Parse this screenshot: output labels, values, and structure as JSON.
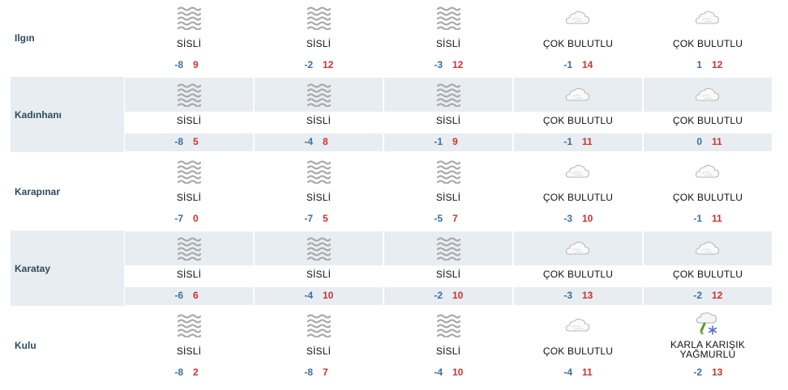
{
  "colors": {
    "alt_row_bg": "#e8edf1",
    "city_text": "#2f4a5e",
    "min_temp": "#3a6ea5",
    "max_temp": "#d0312d"
  },
  "rows": [
    {
      "city": "Ilgın",
      "days": [
        {
          "icon": "fog-icon",
          "condition": "SİSLİ",
          "min": "-8",
          "max": "9"
        },
        {
          "icon": "fog-icon",
          "condition": "SİSLİ",
          "min": "-2",
          "max": "12"
        },
        {
          "icon": "fog-icon",
          "condition": "SİSLİ",
          "min": "-3",
          "max": "12"
        },
        {
          "icon": "cloud-icon",
          "condition": "ÇOK BULUTLU",
          "min": "-1",
          "max": "14"
        },
        {
          "icon": "cloud-icon",
          "condition": "ÇOK BULUTLU",
          "min": "1",
          "max": "12"
        }
      ]
    },
    {
      "city": "Kadınhanı",
      "days": [
        {
          "icon": "fog-icon",
          "condition": "SİSLİ",
          "min": "-8",
          "max": "5"
        },
        {
          "icon": "fog-icon",
          "condition": "SİSLİ",
          "min": "-4",
          "max": "8"
        },
        {
          "icon": "fog-icon",
          "condition": "SİSLİ",
          "min": "-1",
          "max": "9"
        },
        {
          "icon": "cloud-icon",
          "condition": "ÇOK BULUTLU",
          "min": "-1",
          "max": "11"
        },
        {
          "icon": "cloud-icon",
          "condition": "ÇOK BULUTLU",
          "min": "0",
          "max": "11"
        }
      ]
    },
    {
      "city": "Karapınar",
      "days": [
        {
          "icon": "fog-icon",
          "condition": "SİSLİ",
          "min": "-7",
          "max": "0"
        },
        {
          "icon": "fog-icon",
          "condition": "SİSLİ",
          "min": "-7",
          "max": "5"
        },
        {
          "icon": "fog-icon",
          "condition": "SİSLİ",
          "min": "-5",
          "max": "7"
        },
        {
          "icon": "cloud-icon",
          "condition": "ÇOK BULUTLU",
          "min": "-3",
          "max": "10"
        },
        {
          "icon": "cloud-icon",
          "condition": "ÇOK BULUTLU",
          "min": "-1",
          "max": "11"
        }
      ]
    },
    {
      "city": "Karatay",
      "days": [
        {
          "icon": "fog-icon",
          "condition": "SİSLİ",
          "min": "-6",
          "max": "6"
        },
        {
          "icon": "fog-icon",
          "condition": "SİSLİ",
          "min": "-4",
          "max": "10"
        },
        {
          "icon": "fog-icon",
          "condition": "SİSLİ",
          "min": "-2",
          "max": "10"
        },
        {
          "icon": "cloud-icon",
          "condition": "ÇOK BULUTLU",
          "min": "-3",
          "max": "13"
        },
        {
          "icon": "cloud-icon",
          "condition": "ÇOK BULUTLU",
          "min": "-2",
          "max": "12"
        }
      ]
    },
    {
      "city": "Kulu",
      "days": [
        {
          "icon": "fog-icon",
          "condition": "SİSLİ",
          "min": "-8",
          "max": "2"
        },
        {
          "icon": "fog-icon",
          "condition": "SİSLİ",
          "min": "-8",
          "max": "7"
        },
        {
          "icon": "fog-icon",
          "condition": "SİSLİ",
          "min": "-4",
          "max": "10"
        },
        {
          "icon": "cloud-icon",
          "condition": "ÇOK BULUTLU",
          "min": "-4",
          "max": "11"
        },
        {
          "icon": "sleet-icon",
          "condition": "KARLA KARIŞIK YAĞMURLU",
          "condition_lines": [
            "KARLA KARIŞIK",
            "YAĞMURLU"
          ],
          "min": "-2",
          "max": "13"
        }
      ]
    }
  ]
}
